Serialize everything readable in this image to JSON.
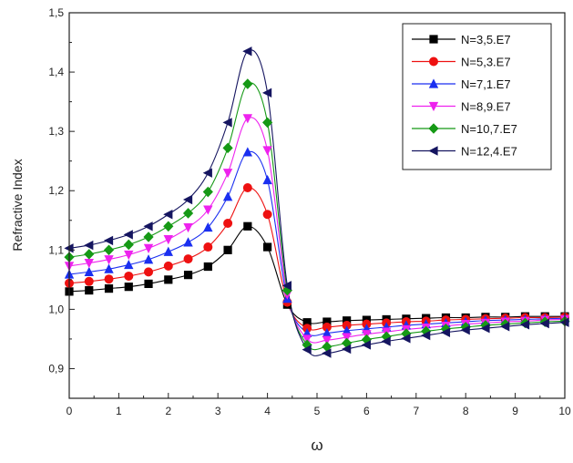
{
  "chart_data": {
    "type": "line",
    "title": "",
    "xlabel": "ω",
    "ylabel": "Refractive Index",
    "xlim": [
      0,
      10
    ],
    "ylim": [
      0.85,
      1.5
    ],
    "xticks": [
      "0",
      "1",
      "2",
      "3",
      "4",
      "5",
      "6",
      "7",
      "8",
      "9",
      "10"
    ],
    "yticks": [
      "0,9",
      "1,0",
      "1,1",
      "1,2",
      "1,3",
      "1,4",
      "1,5"
    ],
    "ytick_values": [
      0.9,
      1.0,
      1.1,
      1.2,
      1.3,
      1.4,
      1.5
    ],
    "legend_position": "top-right",
    "grid": false,
    "x": [
      0.0,
      0.4,
      0.8,
      1.2,
      1.6,
      2.0,
      2.4,
      2.8,
      3.2,
      3.6,
      4.0,
      4.4,
      4.8,
      5.2,
      5.6,
      6.0,
      6.4,
      6.8,
      7.2,
      7.6,
      8.0,
      8.4,
      8.8,
      9.2,
      9.6,
      10.0
    ],
    "series": [
      {
        "name": "N=3,5.E7",
        "color": "#000000",
        "marker": "square",
        "values": [
          1.03,
          1.032,
          1.035,
          1.038,
          1.043,
          1.05,
          1.058,
          1.072,
          1.1,
          1.14,
          1.105,
          1.008,
          0.978,
          0.979,
          0.981,
          0.982,
          0.983,
          0.984,
          0.985,
          0.986,
          0.986,
          0.987,
          0.987,
          0.988,
          0.988,
          0.988
        ]
      },
      {
        "name": "N=5,3.E7",
        "color": "#ee1111",
        "marker": "circle",
        "values": [
          1.044,
          1.047,
          1.051,
          1.056,
          1.063,
          1.073,
          1.085,
          1.105,
          1.145,
          1.205,
          1.16,
          1.012,
          0.968,
          0.97,
          0.973,
          0.975,
          0.977,
          0.979,
          0.98,
          0.982,
          0.983,
          0.984,
          0.985,
          0.986,
          0.986,
          0.987
        ]
      },
      {
        "name": "N=7,1.E7",
        "color": "#1a2ff0",
        "marker": "triangle-up",
        "values": [
          1.059,
          1.063,
          1.068,
          1.075,
          1.084,
          1.097,
          1.113,
          1.138,
          1.19,
          1.265,
          1.218,
          1.018,
          0.96,
          0.96,
          0.964,
          0.967,
          0.97,
          0.973,
          0.975,
          0.977,
          0.979,
          0.981,
          0.982,
          0.983,
          0.984,
          0.985
        ]
      },
      {
        "name": "N=8,9.E7",
        "color": "#ee22ee",
        "marker": "triangle-down",
        "values": [
          1.073,
          1.078,
          1.084,
          1.092,
          1.103,
          1.118,
          1.138,
          1.168,
          1.23,
          1.322,
          1.268,
          1.025,
          0.95,
          0.948,
          0.953,
          0.958,
          0.962,
          0.966,
          0.969,
          0.972,
          0.975,
          0.977,
          0.979,
          0.98,
          0.982,
          0.983
        ]
      },
      {
        "name": "N=10,7.E7",
        "color": "#159915",
        "marker": "diamond",
        "values": [
          1.088,
          1.093,
          1.1,
          1.109,
          1.122,
          1.14,
          1.162,
          1.198,
          1.272,
          1.38,
          1.315,
          1.032,
          0.94,
          0.937,
          0.943,
          0.949,
          0.954,
          0.959,
          0.963,
          0.967,
          0.97,
          0.973,
          0.975,
          0.977,
          0.979,
          0.98
        ]
      },
      {
        "name": "N=12,4.E7",
        "color": "#151560",
        "marker": "triangle-left",
        "values": [
          1.103,
          1.108,
          1.116,
          1.126,
          1.14,
          1.16,
          1.185,
          1.23,
          1.315,
          1.435,
          1.365,
          1.04,
          0.932,
          0.926,
          0.933,
          0.94,
          0.946,
          0.951,
          0.956,
          0.961,
          0.965,
          0.968,
          0.971,
          0.974,
          0.976,
          0.978
        ]
      }
    ]
  }
}
